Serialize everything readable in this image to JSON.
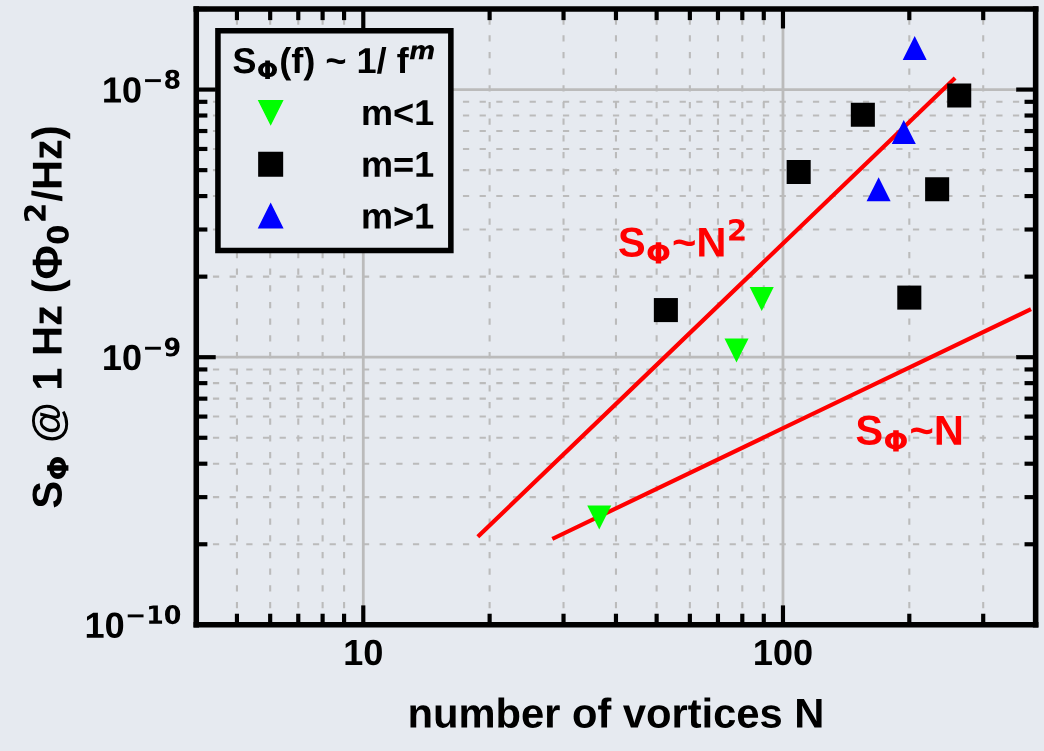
{
  "chart_data": {
    "type": "scatter",
    "xlabel": "number of vortices N",
    "ylabel": "S$_{Φ}$ @ 1 Hz (Φ$_{0}$$^{2}$/Hz)",
    "legend_title": "S$_{Φ}$(f) ~ 1/ f$^{m}$",
    "log": "xy",
    "grid": true,
    "legend": "top left",
    "xlim": [
      4,
      400
    ],
    "xticks": [
      10,
      100
    ],
    "ylim": [
      1e-10,
      2e-08
    ],
    "yticks": [
      {
        "value": 1e-10,
        "label": "10$^{−10}$"
      },
      {
        "value": 1e-09,
        "label": "10$^{−9}$"
      },
      {
        "value": 1e-08,
        "label": "10$^{−8}$"
      }
    ],
    "series": [
      {
        "name": "m<1",
        "marker": "triangle_down",
        "color": "#00ff00",
        "x": [
          36.5,
          77.5,
          89
        ],
        "values": [
          2.52e-10,
          1.06e-09,
          1.65e-09
        ]
      },
      {
        "name": "m=1",
        "marker": "square",
        "color": "#000000",
        "x": [
          52.6,
          109,
          155,
          263,
          233,
          200
        ],
        "values": [
          1.5e-09,
          4.92e-09,
          8.05e-09,
          9.5e-09,
          4.24e-09,
          1.67e-09
        ]
      },
      {
        "name": "m>1",
        "marker": "triangle",
        "color": "#0000ff",
        "x": [
          206,
          194,
          169
        ],
        "values": [
          1.43e-08,
          6.94e-09,
          4.24e-09
        ]
      },
      {
        "type": "line",
        "marker": "none",
        "line_style": "solid",
        "color": "#ff0000",
        "x": [
          18.9,
          255
        ],
        "values": [
          2.16e-10,
          1.09e-08
        ]
      },
      {
        "type": "line",
        "marker": "none",
        "line_style": "solid",
        "color": "#ff0000",
        "x": [
          28.5,
          386
        ],
        "values": [
          2.11e-10,
          1.5e-09
        ]
      }
    ],
    "annotations": [
      "S$_{Φ}$~N$^{2}$",
      "S$_{Φ}$~N"
    ]
  }
}
